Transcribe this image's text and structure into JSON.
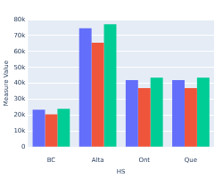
{
  "chart_data": {
    "type": "bar",
    "x_label": "HS",
    "y_label": "Measure Value",
    "categories": [
      "BC",
      "Alta",
      "Ont",
      "Que"
    ],
    "series": [
      {
        "color": "#636efa",
        "values": [
          23500,
          74500,
          42000,
          42000
        ]
      },
      {
        "color": "#ef553b",
        "values": [
          20500,
          65500,
          37000,
          37000
        ]
      },
      {
        "color": "#00cc96",
        "values": [
          24000,
          77000,
          43500,
          43500
        ]
      }
    ],
    "ylim": [
      0,
      80000
    ],
    "yticks": [
      {
        "value": 0,
        "label": "0"
      },
      {
        "value": 10000,
        "label": "10k"
      },
      {
        "value": 20000,
        "label": "20k"
      },
      {
        "value": 30000,
        "label": "30k"
      },
      {
        "value": 40000,
        "label": "40k"
      },
      {
        "value": 50000,
        "label": "50k"
      },
      {
        "value": 60000,
        "label": "60k"
      },
      {
        "value": 70000,
        "label": "70k"
      },
      {
        "value": 80000,
        "label": "80k"
      }
    ],
    "grid": true
  }
}
